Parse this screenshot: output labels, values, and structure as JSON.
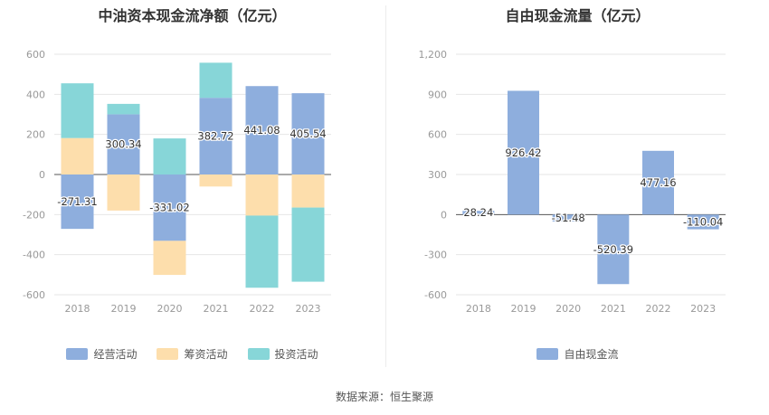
{
  "source_text": "数据来源：恒生聚源",
  "chart_data": [
    {
      "type": "bar",
      "stacked": true,
      "title": "中油资本现金流净额（亿元）",
      "categories": [
        "2018",
        "2019",
        "2020",
        "2021",
        "2022",
        "2023"
      ],
      "ylim": [
        -600,
        600
      ],
      "yticks": [
        600,
        400,
        200,
        0,
        -200,
        -400,
        -600
      ],
      "series": [
        {
          "name": "经营活动",
          "color": "#8eaedd",
          "values": [
            -271.31,
            300.34,
            -331.02,
            382.72,
            441.08,
            405.54
          ]
        },
        {
          "name": "筹资活动",
          "color": "#fddeac",
          "values": [
            182,
            -180,
            -170,
            -60,
            -205,
            -165
          ]
        },
        {
          "name": "投资活动",
          "color": "#87d6d8",
          "values": [
            273,
            52,
            180,
            175,
            -360,
            -370
          ]
        }
      ],
      "data_labels": [
        "-271.31",
        "300.34",
        "-331.02",
        "382.72",
        "441.08",
        "405.54"
      ],
      "legend_position": "bottom",
      "grid": true
    },
    {
      "type": "bar",
      "title": "自由现金流量（亿元）",
      "categories": [
        "2018",
        "2019",
        "2020",
        "2021",
        "2022",
        "2023"
      ],
      "ylim": [
        -600,
        1200
      ],
      "yticks": [
        "1,200",
        "900",
        "600",
        "300",
        "0",
        "-300",
        "-600"
      ],
      "series": [
        {
          "name": "自由现金流",
          "color": "#8eaedd",
          "values": [
            28.24,
            926.42,
            -51.48,
            -520.39,
            477.16,
            -110.04
          ]
        }
      ],
      "data_labels": [
        "28.24",
        "926.42",
        "-51.48",
        "-520.39",
        "477.16",
        "-110.04"
      ],
      "legend_position": "bottom",
      "grid": true
    }
  ]
}
